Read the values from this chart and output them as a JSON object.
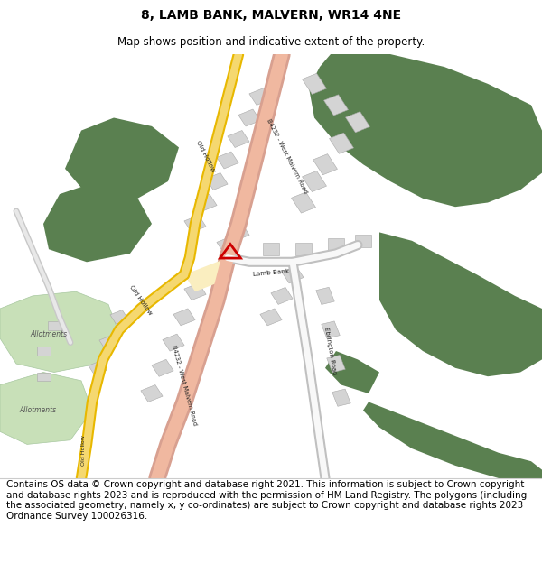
{
  "title": "8, LAMB BANK, MALVERN, WR14 4NE",
  "subtitle": "Map shows position and indicative extent of the property.",
  "footer": "Contains OS data © Crown copyright and database right 2021. This information is subject to Crown copyright and database rights 2023 and is reproduced with the permission of HM Land Registry. The polygons (including the associated geometry, namely x, y co-ordinates) are subject to Crown copyright and database rights 2023 Ordnance Survey 100026316.",
  "title_fontsize": 10,
  "subtitle_fontsize": 8.5,
  "footer_fontsize": 7.5,
  "bg_color": "#ffffff",
  "map_bg": "#ffffff",
  "green_dark": "#5a8050",
  "green_light": "#c8e0b8",
  "road_yellow_fill": "#f5d870",
  "road_yellow_edge": "#e8b800",
  "road_salmon_fill": "#f0b8a0",
  "road_salmon_edge": "#d8a090",
  "road_white_fill": "#f8f8f8",
  "road_white_edge": "#c0c0c0",
  "building_fill": "#d4d4d4",
  "building_edge": "#aaaaaa",
  "marker_color": "#cc0000",
  "text_dark": "#222222",
  "text_mid": "#555555"
}
